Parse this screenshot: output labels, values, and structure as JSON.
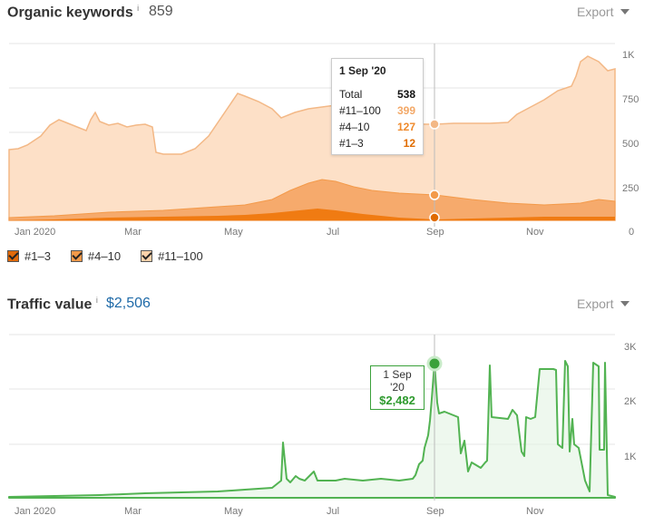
{
  "organic": {
    "title": "Organic keywords",
    "info": "i",
    "value": "859",
    "export_label": "Export",
    "x_ticks": [
      "Jan 2020",
      "Mar",
      "May",
      "Jul",
      "Sep",
      "Nov"
    ],
    "y_ticks": [
      "1K",
      "750",
      "500",
      "250",
      "0"
    ],
    "tooltip": {
      "date": "1 Sep '20",
      "rows": [
        {
          "label": "Total",
          "value": "538",
          "color": "#111111"
        },
        {
          "label": "#11–100",
          "value": "399",
          "color": "#f3a867"
        },
        {
          "label": "#4–10",
          "value": "127",
          "color": "#ef8a2c"
        },
        {
          "label": "#1–3",
          "value": "12",
          "color": "#e06b00"
        }
      ]
    },
    "legend": [
      {
        "label": "#1–3",
        "color": "#e26a0a"
      },
      {
        "label": "#4–10",
        "color": "#f39a4a"
      },
      {
        "label": "#11–100",
        "color": "#fcd2aa"
      }
    ],
    "colors": {
      "top3": "#f07b12",
      "mid": "#f6aa6c",
      "low": "#fde0c7",
      "low_line": "#f3b886"
    },
    "chart_data": {
      "type": "area",
      "x": [
        "2020-01-01",
        "2020-01-15",
        "2020-02-01",
        "2020-02-15",
        "2020-03-01",
        "2020-03-15",
        "2020-04-01",
        "2020-04-15",
        "2020-05-01",
        "2020-05-15",
        "2020-06-01",
        "2020-06-15",
        "2020-07-01",
        "2020-07-15",
        "2020-08-01",
        "2020-08-15",
        "2020-09-01",
        "2020-09-15",
        "2020-10-01",
        "2020-10-15",
        "2020-11-01",
        "2020-11-15",
        "2020-12-01",
        "2020-12-10"
      ],
      "series": [
        {
          "name": "#1–3",
          "values": [
            5,
            8,
            10,
            12,
            14,
            16,
            18,
            20,
            24,
            30,
            40,
            55,
            60,
            50,
            30,
            20,
            12,
            10,
            10,
            12,
            14,
            15,
            15,
            14
          ]
        },
        {
          "name": "#4–10",
          "values": [
            20,
            25,
            40,
            55,
            60,
            60,
            65,
            70,
            80,
            100,
            150,
            200,
            230,
            200,
            160,
            140,
            127,
            120,
            110,
            100,
            95,
            100,
            105,
            100
          ]
        },
        {
          "name": "#11–100",
          "values": [
            400,
            430,
            540,
            600,
            590,
            380,
            400,
            500,
            740,
            650,
            620,
            650,
            640,
            530,
            440,
            420,
            399,
            430,
            450,
            450,
            590,
            740,
            860,
            760
          ]
        }
      ],
      "ylim": [
        0,
        1000
      ]
    }
  },
  "traffic": {
    "title": "Traffic value",
    "info": "i",
    "value": "$2,506",
    "export_label": "Export",
    "x_ticks": [
      "Jan 2020",
      "Mar",
      "May",
      "Jul",
      "Sep",
      "Nov"
    ],
    "y_ticks": [
      "3K",
      "2K",
      "1K"
    ],
    "tooltip": {
      "date": "1 Sep '20",
      "value": "$2,482"
    },
    "color": "#52b352",
    "chart_data": {
      "type": "line",
      "x": [
        "2020-01-01",
        "2020-02-01",
        "2020-03-01",
        "2020-04-01",
        "2020-05-01",
        "2020-05-20",
        "2020-06-01",
        "2020-06-15",
        "2020-07-01",
        "2020-07-15",
        "2020-08-01",
        "2020-08-20",
        "2020-09-01",
        "2020-09-15",
        "2020-10-01",
        "2020-10-15",
        "2020-11-01",
        "2020-11-15",
        "2020-12-01",
        "2020-12-10"
      ],
      "series": [
        {
          "name": "Traffic value",
          "values": [
            20,
            50,
            70,
            80,
            100,
            160,
            650,
            400,
            350,
            400,
            380,
            700,
            2482,
            1500,
            1700,
            2600,
            900,
            2550,
            2650,
            950
          ]
        }
      ],
      "ylim": [
        0,
        3000
      ]
    }
  }
}
